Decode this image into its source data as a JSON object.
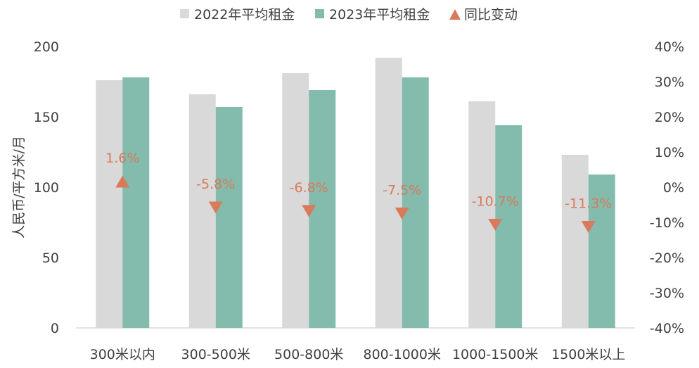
{
  "chart_data": {
    "type": "bar",
    "categories": [
      "300米以内",
      "300-500米",
      "500-800米",
      "800-1000米",
      "1000-1500米",
      "1500米以上"
    ],
    "series": [
      {
        "name": "2022年平均租金",
        "type": "bar",
        "axis": "left",
        "color": "#d9d9d9",
        "values": [
          176,
          166,
          181,
          192,
          161,
          123
        ]
      },
      {
        "name": "2023年平均租金",
        "type": "bar",
        "axis": "left",
        "color": "#83bbad",
        "values": [
          178,
          157,
          169,
          178,
          144,
          109
        ]
      },
      {
        "name": "同比变动",
        "type": "scatter",
        "marker": "triangle",
        "axis": "right",
        "color": "#d97a5a",
        "values": [
          1.6,
          -5.8,
          -6.8,
          -7.5,
          -10.7,
          -11.3
        ],
        "labels": [
          "1.6%",
          "-5.8%",
          "-6.8%",
          "-7.5%",
          "-10.7%",
          "-11.3%"
        ]
      }
    ],
    "ylabel": "人民币/平方米/月",
    "ylim": [
      0,
      200
    ],
    "yticks": [
      "0",
      "50",
      "100",
      "150",
      "200"
    ],
    "y2lim": [
      -40,
      40
    ],
    "y2ticks": [
      "-40%",
      "-30%",
      "-20%",
      "-10%",
      "0%",
      "10%",
      "20%",
      "30%",
      "40%"
    ],
    "legend_position": "top",
    "grid": false
  }
}
